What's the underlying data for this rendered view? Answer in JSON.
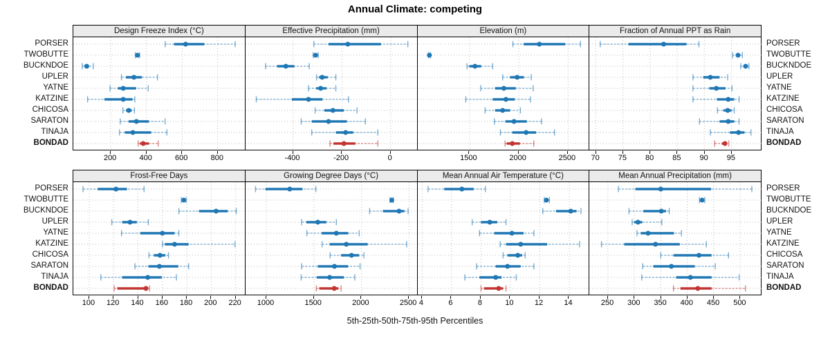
{
  "title": "Annual Climate: competing",
  "caption": "5th-25th-50th-75th-95th Percentiles",
  "stations": [
    "PORSER",
    "TWOBUTTE",
    "BUCKNDOE",
    "UPLER",
    "YATNE",
    "KATZINE",
    "CHICOSA",
    "SARATON",
    "TINAJA",
    "BONDAD"
  ],
  "highlight_station": "BONDAD",
  "percentile_levels": [
    5,
    25,
    50,
    75,
    95
  ],
  "colors": {
    "series": "#1f77b4",
    "highlight": "#c23531",
    "header_bg": "#ebebeb",
    "grid": "#b8b8b8",
    "border": "#000000"
  },
  "layout": {
    "rows": 2,
    "cols": 4,
    "legend": "none",
    "grid": "dotted"
  },
  "chart_data": [
    {
      "type": "dotplot-interval",
      "title": "Design Freeze Index (°C)",
      "row": 0,
      "col": 0,
      "xlim": [
        -10,
        955
      ],
      "ticks": [
        200,
        400,
        600,
        800
      ],
      "values": [
        [
          505,
          555,
          620,
          725,
          898
        ],
        [
          338,
          344,
          350,
          356,
          362
        ],
        [
          40,
          55,
          65,
          78,
          102
        ],
        [
          260,
          285,
          330,
          375,
          462
        ],
        [
          196,
          240,
          270,
          342,
          410
        ],
        [
          70,
          165,
          270,
          322,
          335
        ],
        [
          268,
          285,
          301,
          318,
          333
        ],
        [
          253,
          300,
          344,
          414,
          505
        ],
        [
          249,
          279,
          324,
          426,
          515
        ],
        [
          354,
          364,
          382,
          414,
          466
        ]
      ]
    },
    {
      "type": "dotplot-interval",
      "title": "Effective Precipitation (mm)",
      "row": 0,
      "col": 1,
      "xlim": [
        -595,
        110
      ],
      "ticks": [
        -400,
        -200,
        0
      ],
      "values": [
        [
          -315,
          -255,
          -176,
          -40,
          70
        ],
        [
          -318,
          -312,
          -308,
          -303,
          -297
        ],
        [
          -513,
          -466,
          -430,
          -395,
          -334
        ],
        [
          -304,
          -294,
          -281,
          -258,
          -225
        ],
        [
          -337,
          -306,
          -287,
          -263,
          -225
        ],
        [
          -551,
          -405,
          -337,
          -280,
          -173
        ],
        [
          -310,
          -272,
          -237,
          -192,
          -138
        ],
        [
          -367,
          -324,
          -255,
          -180,
          -104
        ],
        [
          -324,
          -225,
          -185,
          -154,
          -53
        ],
        [
          -249,
          -235,
          -192,
          -145,
          -53
        ]
      ]
    },
    {
      "type": "dotplot-interval",
      "title": "Elevation (m)",
      "row": 0,
      "col": 2,
      "xlim": [
        975,
        2720
      ],
      "ticks": [
        1500,
        2000,
        2500
      ],
      "values": [
        [
          1940,
          2050,
          2208,
          2470,
          2625
        ],
        [
          1082,
          1088,
          1093,
          1098,
          1104
        ],
        [
          1474,
          1497,
          1555,
          1618,
          1735
        ],
        [
          1836,
          1911,
          1983,
          2051,
          2126
        ],
        [
          1614,
          1759,
          1848,
          1969,
          2145
        ],
        [
          1462,
          1735,
          1869,
          1958,
          2117
        ],
        [
          1658,
          1759,
          1836,
          1911,
          2016
        ],
        [
          1752,
          1864,
          1951,
          2081,
          2230
        ],
        [
          1813,
          1934,
          2074,
          2175,
          2362
        ],
        [
          1860,
          1877,
          1934,
          2011,
          2152
        ]
      ]
    },
    {
      "type": "dotplot-interval",
      "title": "Fraction of Annual PPT as Rain",
      "row": 0,
      "col": 3,
      "xlim": [
        68.8,
        100.5
      ],
      "ticks": [
        70,
        75,
        80,
        85,
        90,
        95
      ],
      "values": [
        [
          70.8,
          76.0,
          82.5,
          86.7,
          89.0
        ],
        [
          95.2,
          95.8,
          96.2,
          96.6,
          97.0
        ],
        [
          96.7,
          97.2,
          97.6,
          97.9,
          98.2
        ],
        [
          87.9,
          89.8,
          91.1,
          92.8,
          94.3
        ],
        [
          87.9,
          90.9,
          92.2,
          93.9,
          95.1
        ],
        [
          87.9,
          92.3,
          94.4,
          95.5,
          96.4
        ],
        [
          92.4,
          93.5,
          94.3,
          95.0,
          95.5
        ],
        [
          89.1,
          92.8,
          94.4,
          95.5,
          96.4
        ],
        [
          91.1,
          94.7,
          96.3,
          97.4,
          98.6
        ],
        [
          91.9,
          93.2,
          93.8,
          94.2,
          94.5
        ]
      ]
    },
    {
      "type": "dotplot-interval",
      "title": "Frost-Free Days",
      "row": 1,
      "col": 0,
      "xlim": [
        87,
        228
      ],
      "ticks": [
        100,
        120,
        140,
        160,
        180,
        200,
        220
      ],
      "values": [
        [
          95,
          107,
          122,
          131,
          145
        ],
        [
          175.5,
          176.5,
          177.5,
          178.5,
          179.5
        ],
        [
          173.5,
          190,
          204,
          213.5,
          220.5
        ],
        [
          118.5,
          127,
          133.5,
          139,
          148.5
        ],
        [
          126.5,
          142,
          160,
          170,
          173.5
        ],
        [
          160,
          162,
          170,
          181.5,
          219.5
        ],
        [
          149,
          153,
          158,
          162.5,
          165
        ],
        [
          137.5,
          148.5,
          157.5,
          173,
          181.5
        ],
        [
          109.5,
          127,
          148,
          159.5,
          171.5
        ],
        [
          120.5,
          123,
          146.5,
          148.5,
          149.5
        ]
      ]
    },
    {
      "type": "dotplot-interval",
      "title": "Growing Degree Days (°C)",
      "row": 1,
      "col": 1,
      "xlim": [
        780,
        2590
      ],
      "ticks": [
        1000,
        1500,
        2000,
        2500
      ],
      "values": [
        [
          885,
          990,
          1245,
          1380,
          1520
        ],
        [
          2300,
          2310,
          2318,
          2326,
          2335
        ],
        [
          2085,
          2225,
          2395,
          2450,
          2490
        ],
        [
          1370,
          1420,
          1540,
          1630,
          1735
        ],
        [
          1425,
          1580,
          1735,
          1860,
          1975
        ],
        [
          1585,
          1665,
          1840,
          2065,
          2475
        ],
        [
          1670,
          1785,
          1895,
          1975,
          2025
        ],
        [
          1370,
          1540,
          1715,
          1860,
          1985
        ],
        [
          1365,
          1530,
          1665,
          1815,
          1930
        ],
        [
          1525,
          1555,
          1713,
          1757,
          1785
        ]
      ]
    },
    {
      "type": "dotplot-interval",
      "title": "Mean Annual Air Temperature (°C)",
      "row": 1,
      "col": 2,
      "xlim": [
        3.7,
        15.4
      ],
      "ticks": [
        4,
        6,
        8,
        10,
        12,
        14
      ],
      "values": [
        [
          4.4,
          5.5,
          6.7,
          7.5,
          8.3
        ],
        [
          12.3,
          12.4,
          12.45,
          12.55,
          12.65
        ],
        [
          12.2,
          13.1,
          14.1,
          14.5,
          14.8
        ],
        [
          7.4,
          8.0,
          8.6,
          9.1,
          9.7
        ],
        [
          7.9,
          8.9,
          10.1,
          10.9,
          11.6
        ],
        [
          9.3,
          9.7,
          10.7,
          12.5,
          14.7
        ],
        [
          9.5,
          9.8,
          10.5,
          10.8,
          11.0
        ],
        [
          7.7,
          9.0,
          9.8,
          10.7,
          11.6
        ],
        [
          6.9,
          7.9,
          9.0,
          9.4,
          10.4
        ],
        [
          8.0,
          8.2,
          9.2,
          9.5,
          9.7
        ]
      ]
    },
    {
      "type": "dotplot-interval",
      "title": "Mean Annual Precipitation (mm)",
      "row": 1,
      "col": 3,
      "xlim": [
        215,
        540
      ],
      "ticks": [
        250,
        300,
        350,
        400,
        450,
        500
      ],
      "values": [
        [
          270,
          302,
          350,
          445,
          522
        ],
        [
          423,
          426,
          428,
          430,
          433
        ],
        [
          290,
          317,
          351,
          360,
          366
        ],
        [
          296,
          300,
          307,
          315,
          352
        ],
        [
          305,
          312,
          326,
          375,
          389
        ],
        [
          238,
          281,
          340,
          386,
          436
        ],
        [
          350,
          374,
          422,
          446,
          478
        ],
        [
          316,
          336,
          370,
          414,
          453
        ],
        [
          314,
          379,
          406,
          446,
          498
        ],
        [
          374,
          387,
          420,
          446,
          510
        ]
      ]
    }
  ]
}
